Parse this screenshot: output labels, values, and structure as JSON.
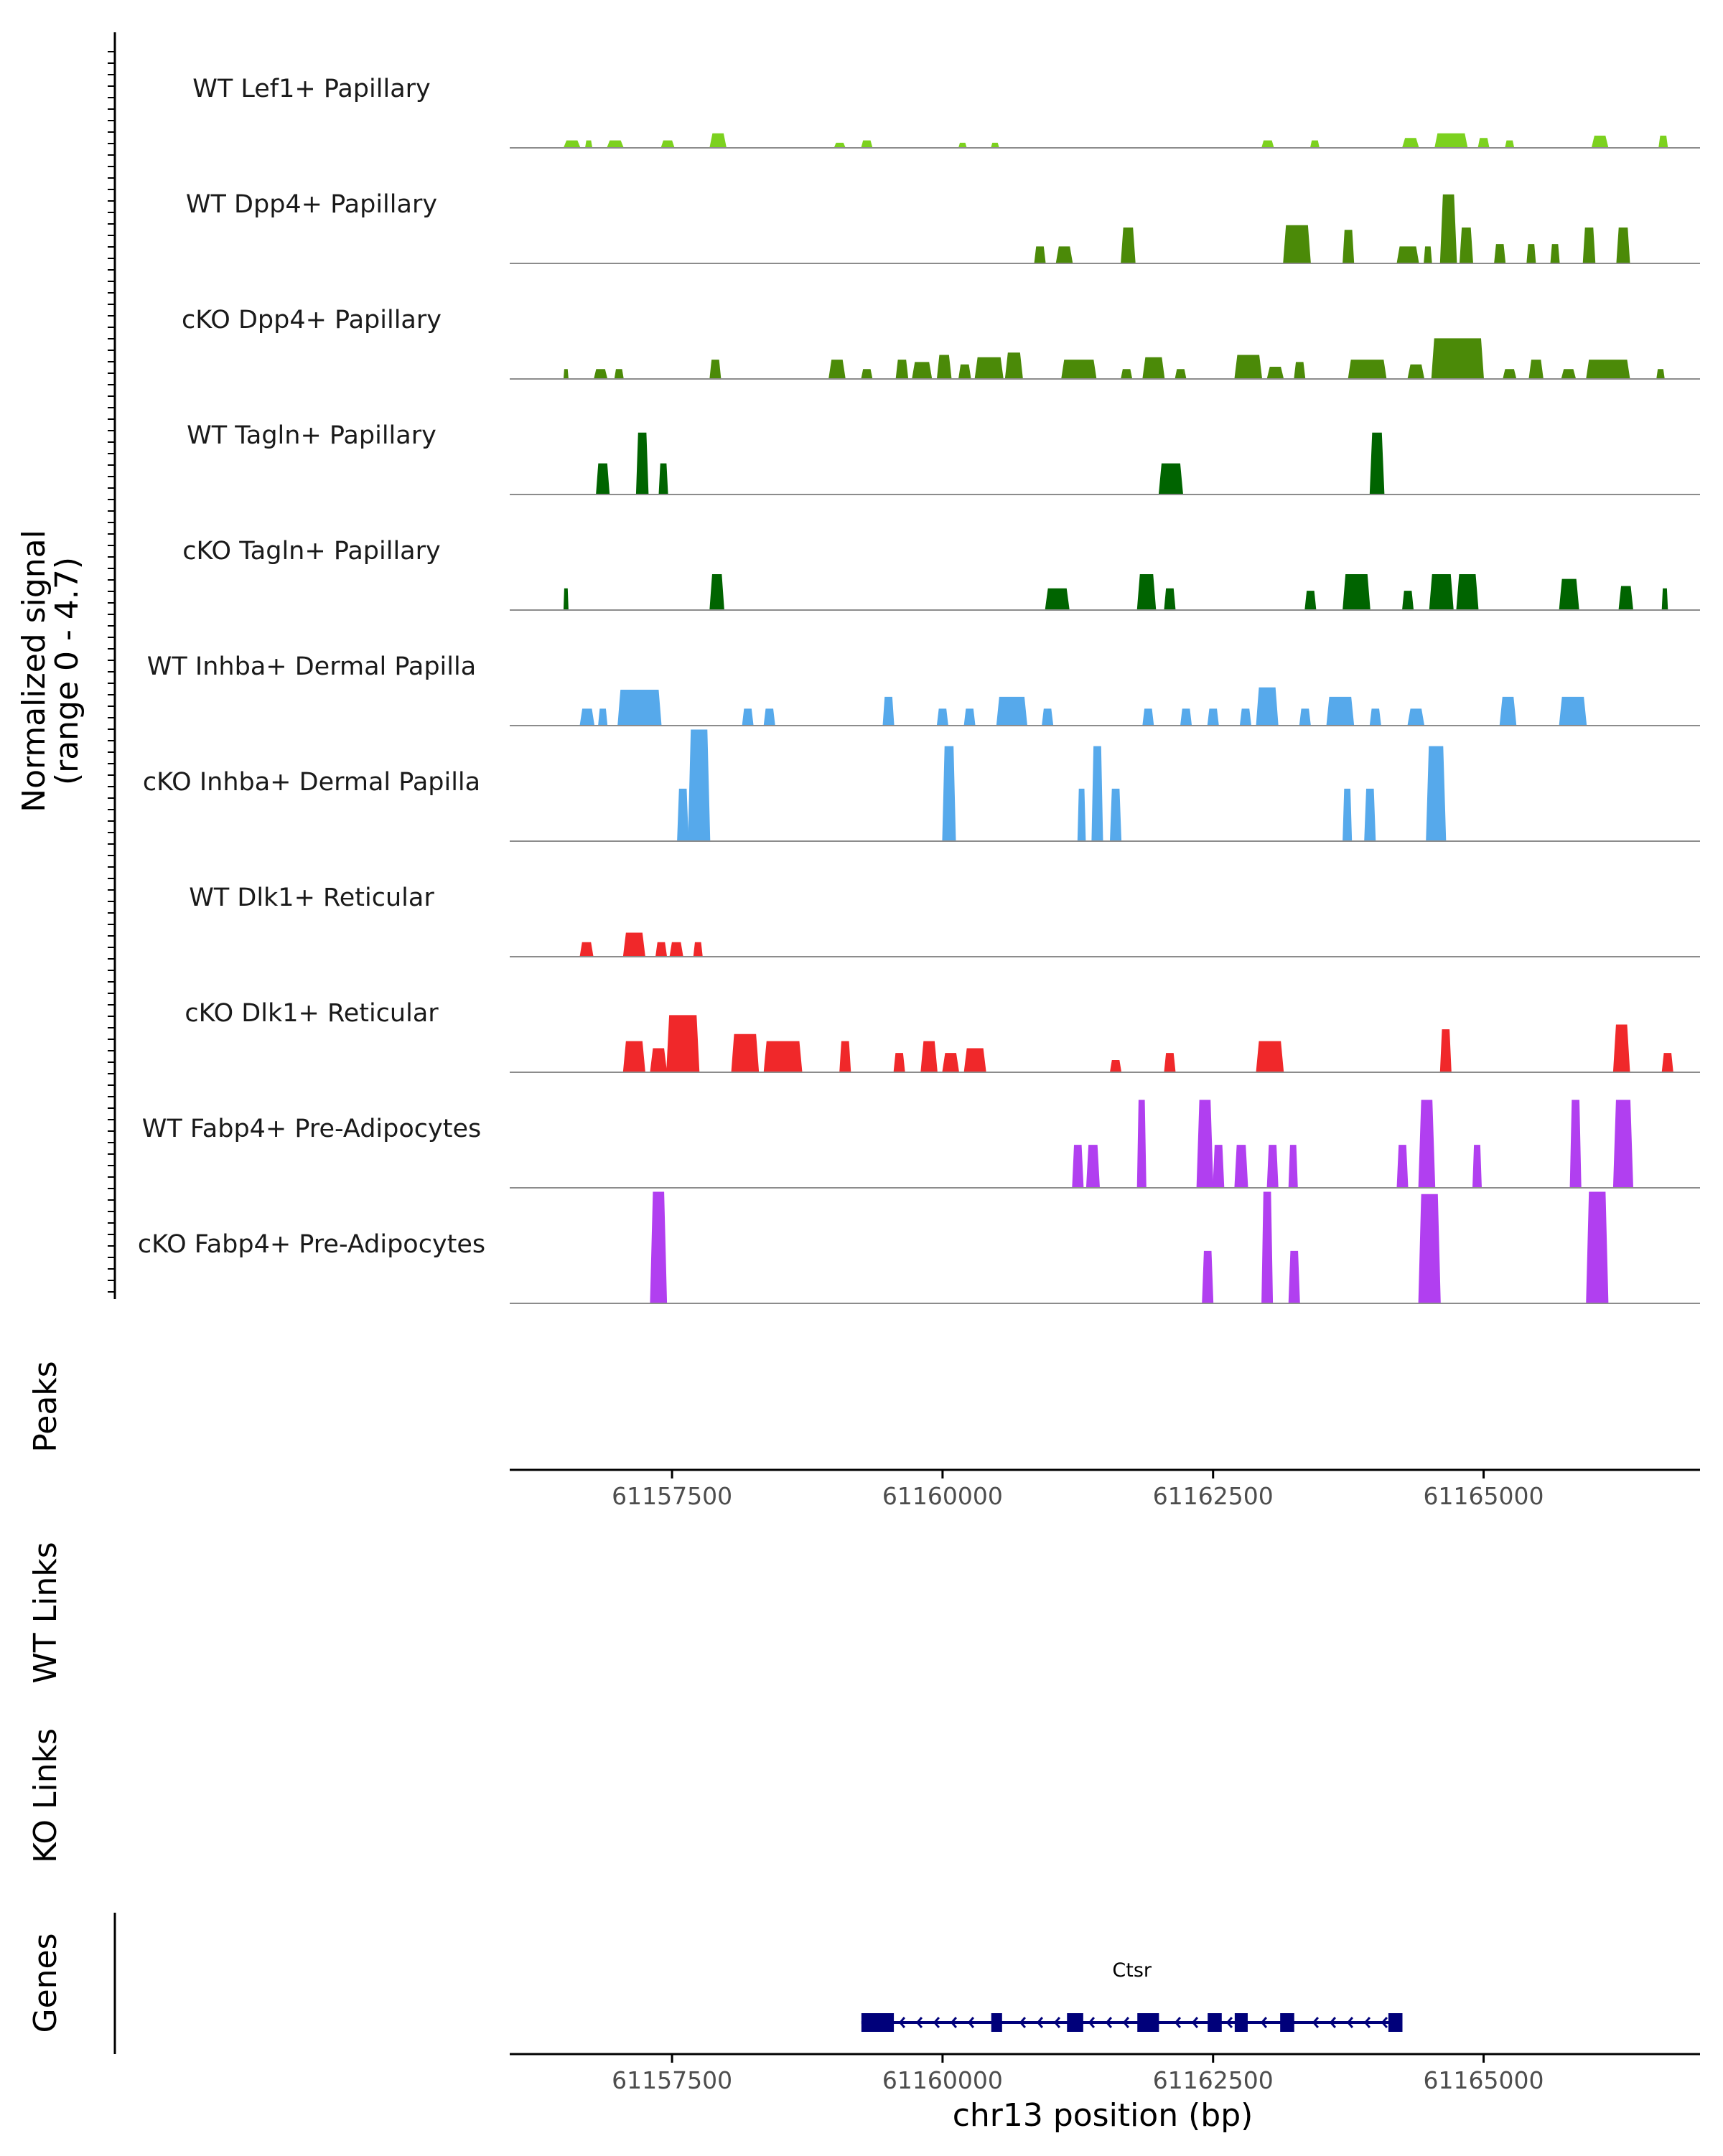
{
  "chart_data": {
    "type": "area",
    "title": "",
    "signal_axis_label": [
      "Normalized signal",
      "(range 0 - 4.7)"
    ],
    "signal_range": [
      0,
      4.7
    ],
    "x_range": [
      61156000,
      61167000
    ],
    "x_ticks": [
      61157500,
      61160000,
      61162500,
      61165000
    ],
    "x_tick_labels": [
      "61157500",
      "61160000",
      "61162500",
      "61165000"
    ],
    "xlabel": "chr13 position (bp)",
    "tracks": [
      {
        "name": "WT Lef1+ Papillary",
        "color": "#7CD11F",
        "regions": [
          [
            61156500,
            61156650,
            0.3
          ],
          [
            61156700,
            61156760,
            0.3
          ],
          [
            61156900,
            61157050,
            0.3
          ],
          [
            61157400,
            61157520,
            0.3
          ],
          [
            61157850,
            61158000,
            0.6
          ],
          [
            61159000,
            61159100,
            0.2
          ],
          [
            61159250,
            61159350,
            0.3
          ],
          [
            61160150,
            61160220,
            0.2
          ],
          [
            61160450,
            61160520,
            0.2
          ],
          [
            61162950,
            61163060,
            0.3
          ],
          [
            61163400,
            61163480,
            0.3
          ],
          [
            61164250,
            61164400,
            0.4
          ],
          [
            61164550,
            61164850,
            0.6
          ],
          [
            61164950,
            61165050,
            0.4
          ],
          [
            61165200,
            61165280,
            0.3
          ],
          [
            61166000,
            61166150,
            0.5
          ],
          [
            61166620,
            61166700,
            0.5
          ]
        ]
      },
      {
        "name": "WT Dpp4+ Papillary",
        "color": "#4B8A08",
        "regions": [
          [
            61160850,
            61160950,
            0.7
          ],
          [
            61161050,
            61161200,
            0.7
          ],
          [
            61161650,
            61161780,
            1.5
          ],
          [
            61163150,
            61163400,
            1.6
          ],
          [
            61163700,
            61163800,
            1.4
          ],
          [
            61164200,
            61164400,
            0.7
          ],
          [
            61164450,
            61164520,
            0.7
          ],
          [
            61164600,
            61164750,
            2.9
          ],
          [
            61164780,
            61164900,
            1.5
          ],
          [
            61165100,
            61165200,
            0.8
          ],
          [
            61165400,
            61165480,
            0.8
          ],
          [
            61165620,
            61165700,
            0.8
          ],
          [
            61165920,
            61166030,
            1.5
          ],
          [
            61166230,
            61166350,
            1.5
          ]
        ]
      },
      {
        "name": "cKO Dpp4+ Papillary",
        "color": "#4B8A08",
        "regions": [
          [
            61156500,
            61156540,
            0.4
          ],
          [
            61156780,
            61156900,
            0.4
          ],
          [
            61156970,
            61157050,
            0.4
          ],
          [
            61157850,
            61157950,
            0.8
          ],
          [
            61158950,
            61159100,
            0.8
          ],
          [
            61159250,
            61159350,
            0.4
          ],
          [
            61159570,
            61159680,
            0.8
          ],
          [
            61159720,
            61159900,
            0.7
          ],
          [
            61159950,
            61160080,
            1.0
          ],
          [
            61160150,
            61160260,
            0.6
          ],
          [
            61160300,
            61160560,
            0.9
          ],
          [
            61160580,
            61160740,
            1.1
          ],
          [
            61161100,
            61161420,
            0.8
          ],
          [
            61161650,
            61161750,
            0.4
          ],
          [
            61161850,
            61162050,
            0.9
          ],
          [
            61162150,
            61162250,
            0.4
          ],
          [
            61162700,
            61162950,
            1.0
          ],
          [
            61163000,
            61163150,
            0.5
          ],
          [
            61163250,
            61163350,
            0.7
          ],
          [
            61163750,
            61164100,
            0.8
          ],
          [
            61164300,
            61164450,
            0.6
          ],
          [
            61164520,
            61165000,
            1.7
          ],
          [
            61165180,
            61165300,
            0.4
          ],
          [
            61165420,
            61165550,
            0.8
          ],
          [
            61165720,
            61165850,
            0.4
          ],
          [
            61165950,
            61166350,
            0.8
          ],
          [
            61166600,
            61166670,
            0.4
          ]
        ]
      },
      {
        "name": "WT Tagln+ Papillary",
        "color": "#006400",
        "regions": [
          [
            61156800,
            61156920,
            1.3
          ],
          [
            61157170,
            61157280,
            2.6
          ],
          [
            61157380,
            61157460,
            1.3
          ],
          [
            61162000,
            61162220,
            1.3
          ],
          [
            61163950,
            61164080,
            2.6
          ]
        ]
      },
      {
        "name": "cKO Tagln+ Papillary",
        "color": "#006400",
        "regions": [
          [
            61156500,
            61156540,
            0.9
          ],
          [
            61157850,
            61157980,
            1.5
          ],
          [
            61160950,
            61161170,
            0.9
          ],
          [
            61161800,
            61161970,
            1.5
          ],
          [
            61162050,
            61162150,
            0.9
          ],
          [
            61163350,
            61163450,
            0.8
          ],
          [
            61163700,
            61163950,
            1.5
          ],
          [
            61164250,
            61164350,
            0.8
          ],
          [
            61164500,
            61164720,
            1.5
          ],
          [
            61164750,
            61164950,
            1.5
          ],
          [
            61165700,
            61165880,
            1.3
          ],
          [
            61166250,
            61166380,
            1.0
          ],
          [
            61166650,
            61166700,
            0.9
          ]
        ]
      },
      {
        "name": "WT Inhba+ Dermal Papilla",
        "color": "#56A9EB",
        "regions": [
          [
            61156650,
            61156780,
            0.7
          ],
          [
            61156820,
            61156900,
            0.7
          ],
          [
            61157000,
            61157400,
            1.5
          ],
          [
            61158150,
            61158250,
            0.7
          ],
          [
            61158350,
            61158450,
            0.7
          ],
          [
            61159450,
            61159550,
            1.2
          ],
          [
            61159950,
            61160050,
            0.7
          ],
          [
            61160200,
            61160300,
            0.7
          ],
          [
            61160500,
            61160780,
            1.2
          ],
          [
            61160920,
            61161020,
            0.7
          ],
          [
            61161850,
            61161950,
            0.7
          ],
          [
            61162200,
            61162300,
            0.7
          ],
          [
            61162450,
            61162550,
            0.7
          ],
          [
            61162750,
            61162850,
            0.7
          ],
          [
            61162900,
            61163100,
            1.6
          ],
          [
            61163300,
            61163400,
            0.7
          ],
          [
            61163550,
            61163800,
            1.2
          ],
          [
            61163950,
            61164050,
            0.7
          ],
          [
            61164300,
            61164450,
            0.7
          ],
          [
            61165150,
            61165300,
            1.2
          ],
          [
            61165700,
            61165950,
            1.2
          ]
        ]
      },
      {
        "name": "cKO Inhba+ Dermal Papilla",
        "color": "#56A9EB",
        "regions": [
          [
            61157550,
            61157650,
            2.2
          ],
          [
            61157650,
            61157850,
            4.7
          ],
          [
            61160000,
            61160120,
            4.0
          ],
          [
            61161250,
            61161320,
            2.2
          ],
          [
            61161380,
            61161480,
            4.0
          ],
          [
            61161550,
            61161650,
            2.2
          ],
          [
            61163700,
            61163780,
            2.2
          ],
          [
            61163900,
            61164000,
            2.2
          ],
          [
            61164470,
            61164650,
            4.0
          ]
        ]
      },
      {
        "name": "WT Dlk1+ Reticular",
        "color": "#F0282A",
        "regions": [
          [
            61156650,
            61156770,
            0.6
          ],
          [
            61157050,
            61157250,
            1.0
          ],
          [
            61157350,
            61157450,
            0.6
          ],
          [
            61157480,
            61157600,
            0.6
          ],
          [
            61157700,
            61157780,
            0.6
          ]
        ]
      },
      {
        "name": "cKO Dlk1+ Reticular",
        "color": "#F0282A",
        "regions": [
          [
            61157050,
            61157250,
            1.3
          ],
          [
            61157300,
            61157450,
            1.0
          ],
          [
            61157450,
            61157750,
            2.4
          ],
          [
            61158050,
            61158300,
            1.6
          ],
          [
            61158350,
            61158700,
            1.3
          ],
          [
            61159050,
            61159150,
            1.3
          ],
          [
            61159550,
            61159650,
            0.8
          ],
          [
            61159800,
            61159950,
            1.3
          ],
          [
            61160000,
            61160150,
            0.8
          ],
          [
            61160200,
            61160400,
            1.0
          ],
          [
            61161550,
            61161650,
            0.5
          ],
          [
            61162050,
            61162150,
            0.8
          ],
          [
            61162900,
            61163150,
            1.3
          ],
          [
            61164600,
            61164700,
            1.8
          ],
          [
            61166200,
            61166350,
            2.0
          ],
          [
            61166650,
            61166750,
            0.8
          ]
        ]
      },
      {
        "name": "WT Fabp4+ Pre-Adipocytes",
        "color": "#B13FF0",
        "regions": [
          [
            61161200,
            61161300,
            1.8
          ],
          [
            61161330,
            61161450,
            1.8
          ],
          [
            61161800,
            61161880,
            3.7
          ],
          [
            61162350,
            61162500,
            3.7
          ],
          [
            61162500,
            61162600,
            1.8
          ],
          [
            61162700,
            61162820,
            1.8
          ],
          [
            61163000,
            61163100,
            1.8
          ],
          [
            61163200,
            61163280,
            1.8
          ],
          [
            61164200,
            61164300,
            1.8
          ],
          [
            61164400,
            61164550,
            3.7
          ],
          [
            61164900,
            61164980,
            1.8
          ],
          [
            61165800,
            61165900,
            3.7
          ],
          [
            61166200,
            61166380,
            3.7
          ]
        ]
      },
      {
        "name": "cKO Fabp4+ Pre-Adipocytes",
        "color": "#B13FF0",
        "regions": [
          [
            61157300,
            61157450,
            4.7
          ],
          [
            61162400,
            61162500,
            2.2
          ],
          [
            61162950,
            61163050,
            4.7
          ],
          [
            61163200,
            61163300,
            2.2
          ],
          [
            61164400,
            61164600,
            4.6
          ],
          [
            61165950,
            61166150,
            4.7
          ]
        ]
      }
    ],
    "side_labels": [
      "Peaks",
      "WT Links",
      "KO Links",
      "Genes"
    ],
    "gene": {
      "name": "Ctsr",
      "strand": "-",
      "start": 61159250,
      "end": 61164250,
      "exons": [
        [
          61159250,
          61159550
        ],
        [
          61160450,
          61160550
        ],
        [
          61161150,
          61161300
        ],
        [
          61161800,
          61162000
        ],
        [
          61162450,
          61162580
        ],
        [
          61162700,
          61162820
        ],
        [
          61163120,
          61163250
        ],
        [
          61164120,
          61164250
        ]
      ]
    }
  }
}
